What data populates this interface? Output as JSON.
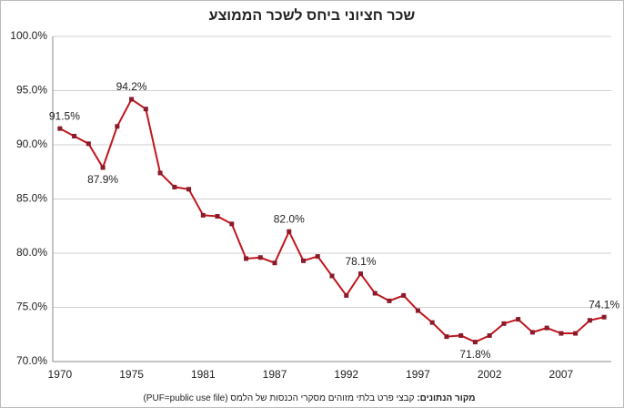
{
  "chart_data": {
    "type": "line",
    "title": "שכר חציוני ביחס לשכר הממוצע",
    "source_label": "מקור הנתונים:",
    "source": "קבצי פרט בלתי מזוהים מסקרי הכנסות של הלמס (PUF=public use file)",
    "categories": [
      "1970",
      null,
      null,
      null,
      null,
      "1975",
      null,
      null,
      null,
      null,
      "1981",
      null,
      null,
      null,
      null,
      "1987",
      null,
      null,
      null,
      null,
      "1992",
      null,
      null,
      null,
      null,
      "1997",
      null,
      null,
      null,
      null,
      "2002",
      null,
      null,
      null,
      null,
      "2007",
      null,
      null,
      null
    ],
    "series": [
      {
        "name": "שכר חציוני ביחס לשכר הממוצע",
        "color": "#c0161c",
        "marker_color": "#8b1a2a",
        "values": [
          91.5,
          90.8,
          90.1,
          87.9,
          91.7,
          94.2,
          93.3,
          87.4,
          86.1,
          85.9,
          83.5,
          83.4,
          82.7,
          79.5,
          79.6,
          79.1,
          82.0,
          79.3,
          79.7,
          77.9,
          76.1,
          78.1,
          76.3,
          75.6,
          76.1,
          74.7,
          73.6,
          72.3,
          72.4,
          71.8,
          72.4,
          73.5,
          73.9,
          72.7,
          73.1,
          72.6,
          72.6,
          73.8,
          74.1
        ],
        "value_labels": [
          "91.5%",
          null,
          null,
          "87.9%",
          null,
          "94.2%",
          null,
          null,
          null,
          null,
          null,
          null,
          null,
          null,
          null,
          null,
          "82.0%",
          null,
          null,
          null,
          null,
          "78.1%",
          null,
          null,
          null,
          null,
          null,
          null,
          null,
          "71.8%",
          null,
          null,
          null,
          null,
          null,
          null,
          null,
          null,
          "74.1%"
        ]
      }
    ],
    "ylim": [
      70,
      100
    ],
    "yticks": [
      {
        "value": 70,
        "label": "70.0%"
      },
      {
        "value": 75,
        "label": "75.0%"
      },
      {
        "value": 80,
        "label": "80.0%"
      },
      {
        "value": 85,
        "label": "85.0%"
      },
      {
        "value": 90,
        "label": "90.0%"
      },
      {
        "value": 95,
        "label": "95.0%"
      },
      {
        "value": 100,
        "label": "100.0%"
      }
    ],
    "grid": true
  }
}
